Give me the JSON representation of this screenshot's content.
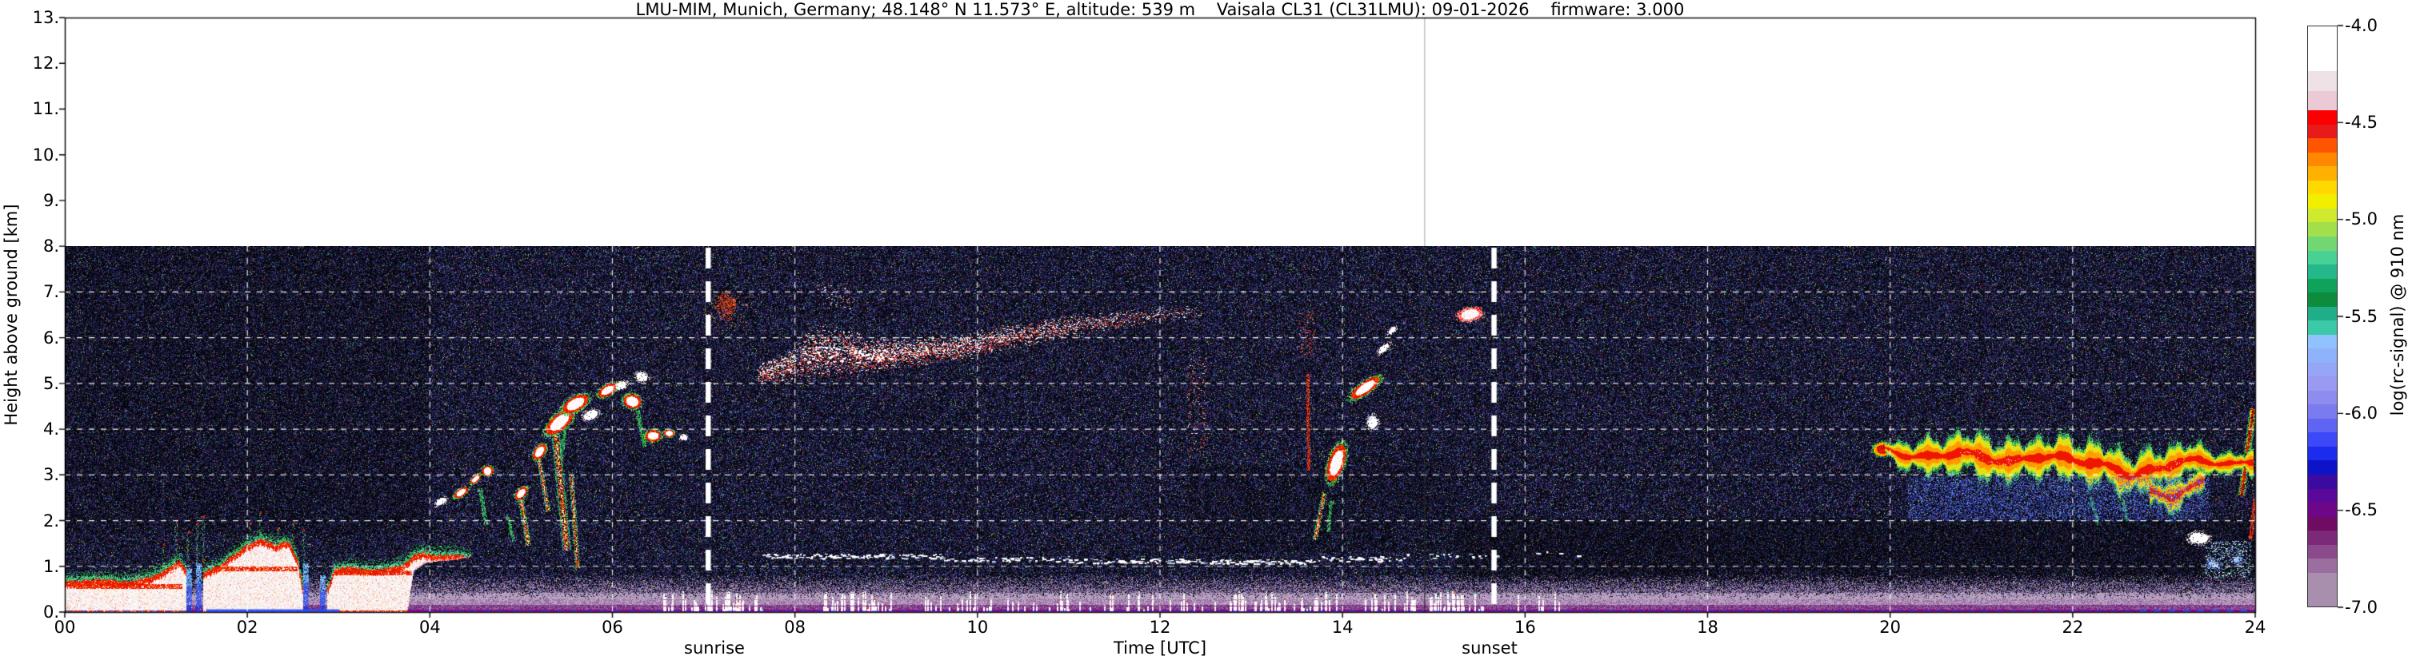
{
  "chart_data": {
    "type": "heatmap",
    "title": "LMU-MIM, Munich, Germany; 48.148° N 11.573° E, altitude: 539 m    Vaisala CL31 (CL31LMU): 09-01-2026    firmware: 3.000",
    "station": {
      "name": "LMU-MIM",
      "location": "Munich, Germany",
      "latitude": "48.148° N",
      "longitude": "11.573° E",
      "altitude": "539 m",
      "instrument": "Vaisala CL31 (CL31LMU)",
      "date": "09-01-2026",
      "firmware": "3.000"
    },
    "xlabel": "Time [UTC]",
    "ylabel": "Height above ground [km]",
    "x_ticks": [
      "00",
      "02",
      "04",
      "06",
      "08",
      "10",
      "12",
      "14",
      "16",
      "18",
      "20",
      "22",
      "24"
    ],
    "x_range_hours": [
      0,
      24
    ],
    "y_ticks": [
      "0.",
      "1.",
      "2.",
      "3.",
      "4.",
      "5.",
      "6.",
      "7.",
      "8.",
      "9.",
      "10.",
      "11.",
      "12.",
      "13."
    ],
    "y_range_km": [
      0,
      13
    ],
    "data_extent_km": [
      0,
      8
    ],
    "grid": {
      "h_lines_km": [
        1,
        2,
        3,
        4,
        5,
        6,
        7
      ],
      "v_lines_hours": [
        2,
        4,
        6,
        8,
        10,
        12,
        14,
        16,
        18,
        20,
        22
      ]
    },
    "annotations": {
      "sunrise": {
        "label": "sunrise",
        "hour": 7.05
      },
      "sunset": {
        "label": "sunset",
        "hour": 15.66
      },
      "scan_gap_hour": 14.9
    },
    "colorbar": {
      "label": "log(rc-signal) @ 910 nm",
      "tick_labels": [
        "-4.0",
        "-4.5",
        "-5.0",
        "-5.5",
        "-6.0",
        "-6.5",
        "-7.0"
      ],
      "tick_values": [
        -4.0,
        -4.5,
        -5.0,
        -5.5,
        -6.0,
        -6.5,
        -7.0
      ],
      "vmin": -7.0,
      "vmax": -4.0,
      "colors": [
        "#ffffff",
        "#efe2e7",
        "#eccad5",
        "#fb0000",
        "#e81a1a",
        "#ff5500",
        "#ff8800",
        "#ffb000",
        "#ffd800",
        "#f2ee00",
        "#cfe92e",
        "#a3df4b",
        "#72d672",
        "#47d195",
        "#23b789",
        "#0fa25b",
        "#0c8c3c",
        "#1fae87",
        "#3cc9a8",
        "#8fc2fe",
        "#8fb3fa",
        "#96a6f6",
        "#9a9af2",
        "#8e8cef",
        "#7a7bee",
        "#5f64f3",
        "#3d49f6",
        "#1c2cee",
        "#0d14c8",
        "#3a0b9e",
        "#5a0899",
        "#6e0787",
        "#6f0b62",
        "#7c2a78",
        "#8c4a8c",
        "#9a6f9f",
        "#a88fad"
      ],
      "weights": [
        3.2,
        1.4,
        1.4,
        1,
        1,
        1,
        1,
        1,
        1,
        1,
        1,
        1,
        1,
        1,
        1,
        1,
        1,
        1,
        1,
        1,
        1,
        1,
        1,
        1,
        1,
        1,
        1,
        1,
        1,
        1,
        1,
        1,
        1,
        1,
        1,
        1,
        2.4
      ]
    },
    "noise": {
      "base": "#06060d",
      "density": 0.8,
      "palette": [
        [
          "#181830",
          26
        ],
        [
          "#222248",
          18
        ],
        [
          "#2b2b66",
          13
        ],
        [
          "#3b3f9e",
          8
        ],
        [
          "#4a5fd6",
          6
        ],
        [
          "#101018",
          14
        ],
        [
          "#5a3f96",
          6
        ],
        [
          "#7a55b5",
          3
        ],
        [
          "#2fae5c",
          2.2
        ],
        [
          "#b9d435",
          1.4
        ],
        [
          "#d2483a",
          1.5
        ],
        [
          "#58cfe0",
          0.9
        ]
      ]
    },
    "shade_rects": [
      {
        "t": [
          15.25,
          24
        ],
        "km": [
          0.65,
          2.05
        ],
        "alpha": 0.3
      },
      {
        "t": [
          0.0,
          4.0
        ],
        "km": [
          1.7,
          8.0
        ],
        "alpha": 0.17
      },
      {
        "t": [
          12.3,
          15.25
        ],
        "km": [
          1.3,
          3.2
        ],
        "alpha": 0.15
      }
    ],
    "bottom_band": {
      "t": [
        0,
        24
      ],
      "top_km": 0.85,
      "stops": [
        [
          0.0,
          "#8f008f"
        ],
        [
          0.06,
          "#76217f"
        ],
        [
          0.16,
          "#93689d"
        ],
        [
          0.28,
          "#bfa8c6"
        ],
        [
          0.42,
          "#ab93b8"
        ],
        [
          0.85,
          "#6a5580"
        ]
      ]
    },
    "baselines": [
      {
        "t": [
          0.0,
          1.55
        ],
        "h_km": 0.035,
        "color": "#2b3bf0",
        "alpha": 0.55,
        "dash": true
      },
      {
        "t": [
          3.9,
          24.0
        ],
        "h_km": 0.035,
        "color": "#2b3bf0",
        "alpha": 0.5,
        "dash": true
      },
      {
        "t": [
          1.55,
          3.0
        ],
        "h_km": 0.06,
        "color": "#2e52ff",
        "alpha": 1.0,
        "dash": false
      },
      {
        "t": [
          22.7,
          24.0
        ],
        "h_km": 0.05,
        "color": "#2e52ff",
        "alpha": 0.8,
        "dash": true
      }
    ],
    "bl_cloud": {
      "top": [
        [
          0,
          0.74
        ],
        [
          0.35,
          0.8
        ],
        [
          0.7,
          0.75
        ],
        [
          0.95,
          0.85
        ],
        [
          1.1,
          1.0
        ],
        [
          1.25,
          1.2
        ],
        [
          1.32,
          1.05
        ],
        [
          1.52,
          0.95
        ],
        [
          1.7,
          1.1
        ],
        [
          1.85,
          1.35
        ],
        [
          2.0,
          1.55
        ],
        [
          2.15,
          1.68
        ],
        [
          2.3,
          1.55
        ],
        [
          2.45,
          1.62
        ],
        [
          2.55,
          1.2
        ],
        [
          2.6,
          0.62
        ],
        [
          2.88,
          0.62
        ],
        [
          2.95,
          1.02
        ],
        [
          3.1,
          1.06
        ],
        [
          3.35,
          1.0
        ],
        [
          3.55,
          1.03
        ],
        [
          3.7,
          1.1
        ],
        [
          3.82,
          1.32
        ],
        [
          3.93,
          1.38
        ],
        [
          4.05,
          1.32
        ],
        [
          4.25,
          1.33
        ],
        [
          4.45,
          1.28
        ]
      ],
      "bottom": [
        [
          0,
          0
        ],
        [
          3.75,
          0
        ],
        [
          3.82,
          0.9
        ],
        [
          3.95,
          1.08
        ],
        [
          4.1,
          1.12
        ],
        [
          4.3,
          1.15
        ],
        [
          4.45,
          1.22
        ]
      ],
      "gaps": [
        [
          1.33,
          1.51
        ],
        [
          2.61,
          2.87
        ]
      ],
      "spikes": [
        [
          1.08,
          1.5
        ],
        [
          1.22,
          2.0
        ],
        [
          1.35,
          1.78
        ],
        [
          1.45,
          1.95
        ],
        [
          1.52,
          2.1
        ],
        [
          2.03,
          1.95
        ],
        [
          2.14,
          2.2
        ],
        [
          2.34,
          1.85
        ],
        [
          2.5,
          1.95
        ],
        [
          2.62,
          1.8
        ]
      ],
      "curtains": [
        [
          1.36,
          0.95
        ],
        [
          1.47,
          1.05
        ],
        [
          2.64,
          1.05
        ],
        [
          2.83,
          0.8
        ]
      ],
      "inner_red": [
        [
          0.05,
          1.28,
          0.57
        ],
        [
          1.62,
          2.55,
          0.95
        ],
        [
          2.95,
          3.8,
          0.87
        ]
      ]
    },
    "cirrus": {
      "pts": [
        [
          7.6,
          5.2,
          0.16,
          0.55
        ],
        [
          7.9,
          5.35,
          0.22,
          0.75
        ],
        [
          8.2,
          5.7,
          0.45,
          1.0
        ],
        [
          8.5,
          5.65,
          0.4,
          1.0
        ],
        [
          8.8,
          5.6,
          0.3,
          0.95
        ],
        [
          9.1,
          5.65,
          0.26,
          0.9
        ],
        [
          9.4,
          5.7,
          0.22,
          0.8
        ],
        [
          9.7,
          5.75,
          0.2,
          0.7
        ],
        [
          10.0,
          5.85,
          0.2,
          0.62
        ],
        [
          10.3,
          6.0,
          0.2,
          0.52
        ],
        [
          10.6,
          6.1,
          0.18,
          0.45
        ],
        [
          10.9,
          6.2,
          0.18,
          0.4
        ],
        [
          11.2,
          6.3,
          0.16,
          0.32
        ],
        [
          11.5,
          6.35,
          0.15,
          0.26
        ],
        [
          11.8,
          6.45,
          0.14,
          0.18
        ],
        [
          12.1,
          6.5,
          0.12,
          0.12
        ],
        [
          12.45,
          6.55,
          0.12,
          0.07
        ]
      ]
    },
    "aerosol_line_segments": [
      [
        7.65,
        9.6,
        1.22,
        0.55
      ],
      [
        9.6,
        11.0,
        1.16,
        0.3
      ],
      [
        11.0,
        12.4,
        1.12,
        0.45
      ],
      [
        12.4,
        13.7,
        1.1,
        0.55
      ],
      [
        13.7,
        14.7,
        1.16,
        0.35
      ],
      [
        14.7,
        15.7,
        1.22,
        0.18
      ],
      [
        16.05,
        16.6,
        1.28,
        0.15
      ]
    ],
    "ground_spike_segments": [
      [
        6.55,
        7.65,
        0.6
      ],
      [
        8.3,
        9.05,
        0.5
      ],
      [
        9.4,
        10.45,
        0.35
      ],
      [
        10.5,
        12.7,
        0.22
      ],
      [
        12.75,
        13.95,
        0.65
      ],
      [
        14.25,
        15.55,
        0.5
      ],
      [
        15.9,
        16.4,
        0.25
      ]
    ],
    "speckle_patches": [
      {
        "t": [
          12.3,
          12.5
        ],
        "km": [
          3.5,
          5.6
        ],
        "n": 170,
        "colors": [
          "#e03020",
          "#ff7040",
          "#ffffff"
        ]
      },
      {
        "t": [
          13.52,
          13.7
        ],
        "km": [
          5.6,
          6.6
        ],
        "n": 90,
        "colors": [
          "#e03020",
          "#ff7040"
        ]
      },
      {
        "t": [
          8.25,
          8.65
        ],
        "km": [
          6.6,
          7.15
        ],
        "n": 70,
        "colors": [
          "#ffffff",
          "#ffd0d0",
          "#e85040"
        ]
      },
      {
        "t": [
          7.0,
          7.5
        ],
        "km": [
          6.2,
          7.0
        ],
        "n": 60,
        "colors": [
          "#e04010",
          "#ff7730",
          "#ffb000"
        ]
      },
      {
        "t": [
          23.45,
          23.95
        ],
        "km": [
          0.75,
          1.55
        ],
        "n": 600,
        "colors": [
          "#9cc0f8",
          "#c8dcff",
          "#ffffff",
          "#5f86e8",
          "#3fae5c"
        ]
      }
    ],
    "streaks": [
      [
        4.55,
        2.7,
        4.62,
        1.9,
        5,
        "green"
      ],
      [
        4.85,
        2.1,
        4.92,
        1.55,
        4,
        "green"
      ],
      [
        5.0,
        2.45,
        5.08,
        1.45,
        7,
        "virga"
      ],
      [
        5.2,
        3.3,
        5.3,
        2.2,
        6,
        "virga"
      ],
      [
        5.38,
        3.9,
        5.5,
        1.35,
        11,
        "virga"
      ],
      [
        5.55,
        3.0,
        5.62,
        0.95,
        6,
        "virga"
      ],
      [
        5.5,
        4.35,
        5.44,
        3.35,
        5,
        "green"
      ],
      [
        6.28,
        4.4,
        6.35,
        3.6,
        5,
        "green"
      ],
      [
        13.62,
        5.2,
        13.63,
        3.1,
        4,
        "red"
      ],
      [
        13.8,
        2.6,
        13.7,
        1.58,
        6,
        "virga"
      ],
      [
        13.88,
        2.42,
        13.84,
        1.75,
        4,
        "green"
      ],
      [
        23.85,
        2.55,
        23.98,
        4.45,
        9,
        "virga2"
      ],
      [
        23.95,
        1.6,
        24.0,
        2.5,
        5,
        "red"
      ],
      [
        22.2,
        2.5,
        22.28,
        1.92,
        4,
        "green"
      ],
      [
        22.55,
        2.45,
        22.6,
        2.0,
        4,
        "green"
      ]
    ],
    "blobs": [
      [
        4.12,
        2.42,
        10,
        5,
        -35,
        "white"
      ],
      [
        4.34,
        2.62,
        12,
        6,
        -35,
        "cloud"
      ],
      [
        4.5,
        2.9,
        10,
        5,
        -40,
        "cloud"
      ],
      [
        4.63,
        3.08,
        9,
        8,
        0,
        "cloud"
      ],
      [
        5.0,
        2.6,
        12,
        7,
        -50,
        "cloud"
      ],
      [
        5.2,
        3.5,
        14,
        8,
        -55,
        "cloud"
      ],
      [
        5.42,
        4.15,
        26,
        12,
        -40,
        "cloud"
      ],
      [
        5.6,
        4.55,
        22,
        11,
        -30,
        "cloud"
      ],
      [
        5.76,
        4.3,
        13,
        8,
        -20,
        "white"
      ],
      [
        5.95,
        4.85,
        16,
        8,
        -30,
        "cloud"
      ],
      [
        6.1,
        4.95,
        10,
        6,
        -30,
        "white"
      ],
      [
        6.22,
        4.6,
        11,
        14,
        -75,
        "cloud"
      ],
      [
        6.32,
        5.15,
        8,
        10,
        -75,
        "white"
      ],
      [
        6.45,
        3.85,
        12,
        9,
        0,
        "cloud"
      ],
      [
        6.62,
        3.9,
        8,
        6,
        0,
        "cloud"
      ],
      [
        6.78,
        3.82,
        6,
        5,
        0,
        "white"
      ],
      [
        7.25,
        6.7,
        13,
        19,
        0,
        "red"
      ],
      [
        13.93,
        3.25,
        30,
        12,
        -72,
        "cloud"
      ],
      [
        14.25,
        4.9,
        26,
        9,
        -35,
        "cloud"
      ],
      [
        14.45,
        5.75,
        12,
        5,
        -40,
        "white"
      ],
      [
        14.55,
        6.15,
        8,
        4,
        -40,
        "white"
      ],
      [
        14.33,
        4.15,
        9,
        11,
        0,
        "white"
      ],
      [
        15.4,
        6.5,
        19,
        10,
        -10,
        "cloud2"
      ],
      [
        19.92,
        3.55,
        15,
        11,
        0,
        "red2"
      ],
      [
        23.38,
        1.62,
        16,
        10,
        0,
        "white"
      ],
      [
        23.55,
        1.05,
        10,
        7,
        0,
        "blue"
      ],
      [
        23.8,
        1.15,
        8,
        6,
        0,
        "blue"
      ]
    ],
    "evening_layer": {
      "pts": [
        [
          19.95,
          3.55,
          0.14
        ],
        [
          20.15,
          3.45,
          0.3
        ],
        [
          20.45,
          3.38,
          0.4
        ],
        [
          20.75,
          3.52,
          0.44
        ],
        [
          21.05,
          3.38,
          0.48
        ],
        [
          21.35,
          3.28,
          0.44
        ],
        [
          21.6,
          3.42,
          0.42
        ],
        [
          21.9,
          3.38,
          0.46
        ],
        [
          22.2,
          3.28,
          0.48
        ],
        [
          22.45,
          3.15,
          0.46
        ],
        [
          22.65,
          3.0,
          0.46
        ],
        [
          22.9,
          3.1,
          0.45
        ],
        [
          23.15,
          3.3,
          0.42
        ],
        [
          23.4,
          3.32,
          0.34
        ],
        [
          23.6,
          3.28,
          0.26
        ],
        [
          23.8,
          3.22,
          0.2
        ],
        [
          23.97,
          3.3,
          0.3
        ]
      ],
      "lower_lobe": [
        [
          22.85,
          2.62,
          0.3
        ],
        [
          23.1,
          2.55,
          0.35
        ],
        [
          23.3,
          2.7,
          0.3
        ],
        [
          23.45,
          2.9,
          0.2
        ]
      ],
      "white_flecks": [
        [
          20.7,
          21.45
        ],
        [
          22.9,
          23.25
        ]
      ],
      "blue_under": [
        20.2,
        23.5,
        2.0,
        2.95
      ]
    }
  }
}
